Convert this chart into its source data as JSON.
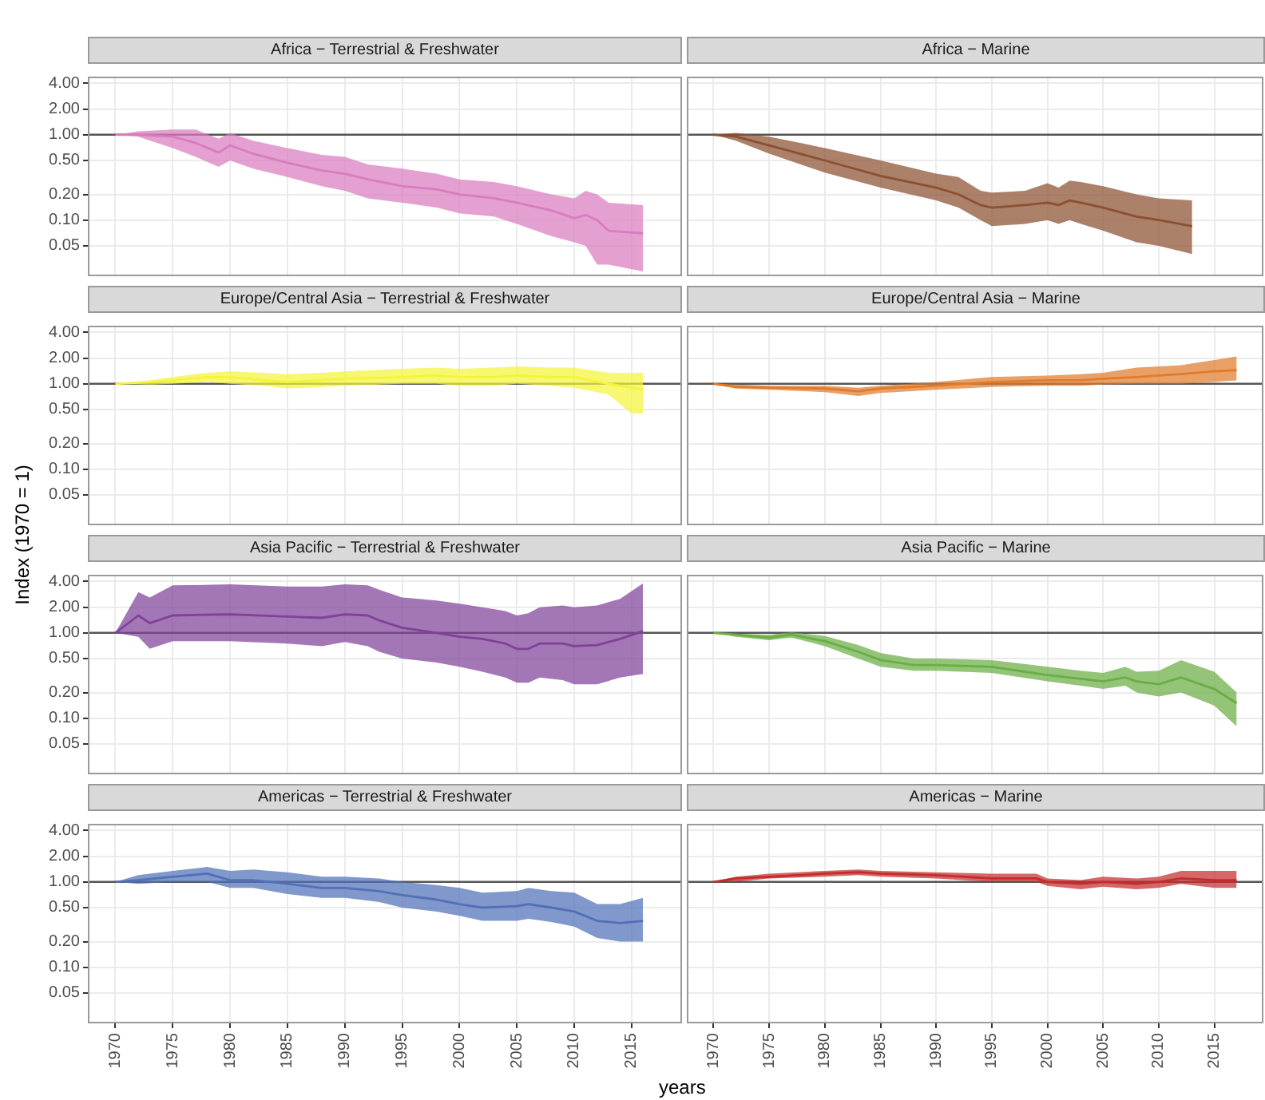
{
  "chart_data": [
    {
      "type": "line",
      "title": "Africa − Terrestrial & Freshwater",
      "log": true,
      "grid": true,
      "tick_labels": "y",
      "xlim": [
        1967.6,
        2019.4
      ],
      "xticks": [
        1970,
        1975,
        1980,
        1985,
        1990,
        1995,
        2000,
        2005,
        2010,
        2015
      ],
      "ylim": [
        0.022,
        4.8
      ],
      "yticks": [
        {
          "value": 0.05,
          "label": "0.05"
        },
        {
          "value": 0.1,
          "label": "0.10"
        },
        {
          "value": 0.2,
          "label": "0.20"
        },
        {
          "value": 0.5,
          "label": "0.50"
        },
        {
          "value": 1,
          "label": "1.00"
        },
        {
          "value": 2,
          "label": "2.00"
        },
        {
          "value": 4,
          "label": "4.00"
        }
      ],
      "ref_lines": [
        {
          "axis": "y",
          "value": 1
        }
      ],
      "x": [
        1970,
        1972,
        1975,
        1977,
        1979,
        1980,
        1982,
        1985,
        1988,
        1990,
        1992,
        1995,
        1998,
        2000,
        2003,
        2005,
        2008,
        2010,
        2011,
        2012,
        2013,
        2016
      ],
      "series": [
        {
          "color": "#d97cbe",
          "values": [
            1,
            1,
            0.95,
            0.8,
            0.62,
            0.75,
            0.6,
            0.47,
            0.38,
            0.35,
            0.3,
            0.25,
            0.23,
            0.2,
            0.18,
            0.16,
            0.13,
            0.105,
            0.115,
            0.1,
            0.075,
            0.07
          ],
          "upper": [
            1,
            1.1,
            1.15,
            1.15,
            0.9,
            1.05,
            0.85,
            0.7,
            0.58,
            0.55,
            0.45,
            0.4,
            0.35,
            0.3,
            0.28,
            0.25,
            0.2,
            0.18,
            0.22,
            0.2,
            0.16,
            0.15
          ],
          "lower": [
            1,
            0.95,
            0.7,
            0.55,
            0.42,
            0.5,
            0.4,
            0.32,
            0.25,
            0.22,
            0.18,
            0.16,
            0.14,
            0.12,
            0.11,
            0.09,
            0.065,
            0.055,
            0.05,
            0.03,
            0.03,
            0.025
          ]
        }
      ]
    },
    {
      "type": "line",
      "title": "Africa − Marine",
      "log": true,
      "grid": true,
      "tick_labels": false,
      "xlim": [
        1967.6,
        2019.4
      ],
      "xticks": [
        1970,
        1975,
        1980,
        1985,
        1990,
        1995,
        2000,
        2005,
        2010,
        2015
      ],
      "ylim": [
        0.022,
        4.8
      ],
      "yticks": [
        0.05,
        0.1,
        0.2,
        0.5,
        1,
        2,
        4
      ],
      "ref_lines": [
        {
          "axis": "y",
          "value": 1
        }
      ],
      "x": [
        1970,
        1972,
        1975,
        1980,
        1985,
        1990,
        1992,
        1994,
        1995,
        1998,
        2000,
        2001,
        2002,
        2003,
        2005,
        2008,
        2010,
        2013
      ],
      "series": [
        {
          "color": "#8b5031",
          "values": [
            1,
            0.95,
            0.75,
            0.5,
            0.33,
            0.24,
            0.2,
            0.15,
            0.14,
            0.15,
            0.16,
            0.15,
            0.17,
            0.16,
            0.14,
            0.11,
            0.1,
            0.085
          ],
          "upper": [
            1,
            1.05,
            0.95,
            0.7,
            0.5,
            0.35,
            0.32,
            0.22,
            0.21,
            0.22,
            0.27,
            0.24,
            0.29,
            0.28,
            0.25,
            0.2,
            0.18,
            0.17
          ],
          "lower": [
            1,
            0.85,
            0.6,
            0.36,
            0.24,
            0.17,
            0.14,
            0.1,
            0.085,
            0.09,
            0.1,
            0.09,
            0.1,
            0.09,
            0.075,
            0.055,
            0.05,
            0.04
          ]
        }
      ]
    },
    {
      "type": "line",
      "title": "Europe/Central Asia − Terrestrial & Freshwater",
      "ylabel": "Index (1970 = 1)",
      "log": true,
      "grid": true,
      "tick_labels": "y",
      "xlim": [
        1967.6,
        2019.4
      ],
      "xticks": [
        1970,
        1975,
        1980,
        1985,
        1990,
        1995,
        2000,
        2005,
        2010,
        2015
      ],
      "ylim": [
        0.022,
        4.8
      ],
      "yticks": [
        {
          "value": 0.05,
          "label": "0.05"
        },
        {
          "value": 0.1,
          "label": "0.10"
        },
        {
          "value": 0.2,
          "label": "0.20"
        },
        {
          "value": 0.5,
          "label": "0.50"
        },
        {
          "value": 1,
          "label": "1.00"
        },
        {
          "value": 2,
          "label": "2.00"
        },
        {
          "value": 4,
          "label": "4.00"
        }
      ],
      "ref_lines": [
        {
          "axis": "y",
          "value": 1
        }
      ],
      "x": [
        1970,
        1973,
        1975,
        1978,
        1980,
        1983,
        1985,
        1988,
        1990,
        1995,
        1998,
        2000,
        2003,
        2005,
        2008,
        2010,
        2013,
        2015,
        2016
      ],
      "series": [
        {
          "color": "#f4f43a",
          "values": [
            1,
            1.05,
            1.1,
            1.2,
            1.2,
            1.1,
            1.05,
            1.1,
            1.15,
            1.2,
            1.25,
            1.2,
            1.2,
            1.25,
            1.2,
            1.2,
            1,
            0.9,
            0.85
          ],
          "upper": [
            1,
            1.1,
            1.2,
            1.35,
            1.4,
            1.35,
            1.3,
            1.35,
            1.4,
            1.5,
            1.55,
            1.5,
            1.55,
            1.6,
            1.55,
            1.55,
            1.35,
            1.35,
            1.35
          ],
          "lower": [
            1,
            0.98,
            1,
            1.05,
            1,
            0.95,
            0.88,
            0.92,
            0.95,
            1,
            1,
            0.95,
            0.95,
            1,
            0.95,
            0.9,
            0.75,
            0.45,
            0.45
          ]
        }
      ]
    },
    {
      "type": "line",
      "title": "Europe/Central Asia − Marine",
      "log": true,
      "grid": true,
      "tick_labels": false,
      "xlim": [
        1967.6,
        2019.4
      ],
      "xticks": [
        1970,
        1975,
        1980,
        1985,
        1990,
        1995,
        2000,
        2005,
        2010,
        2015
      ],
      "ylim": [
        0.022,
        4.8
      ],
      "yticks": [
        0.05,
        0.1,
        0.2,
        0.5,
        1,
        2,
        4
      ],
      "ref_lines": [
        {
          "axis": "y",
          "value": 1
        }
      ],
      "x": [
        1970,
        1972,
        1975,
        1980,
        1983,
        1985,
        1990,
        1995,
        2000,
        2003,
        2005,
        2008,
        2010,
        2012,
        2015,
        2017
      ],
      "series": [
        {
          "color": "#e07b2c",
          "values": [
            1,
            0.92,
            0.9,
            0.88,
            0.82,
            0.88,
            0.95,
            1.05,
            1.1,
            1.1,
            1.15,
            1.2,
            1.25,
            1.3,
            1.4,
            1.45
          ],
          "upper": [
            1,
            0.98,
            0.95,
            0.95,
            0.9,
            0.95,
            1.05,
            1.2,
            1.25,
            1.3,
            1.35,
            1.55,
            1.6,
            1.65,
            1.9,
            2.1
          ],
          "lower": [
            1,
            0.88,
            0.85,
            0.8,
            0.72,
            0.78,
            0.85,
            0.92,
            0.95,
            0.95,
            0.98,
            1,
            1,
            1,
            1.05,
            1.1
          ]
        }
      ]
    },
    {
      "type": "line",
      "title": "Asia Pacific − Terrestrial & Freshwater",
      "log": true,
      "grid": true,
      "tick_labels": "y",
      "xlim": [
        1967.6,
        2019.4
      ],
      "xticks": [
        1970,
        1975,
        1980,
        1985,
        1990,
        1995,
        2000,
        2005,
        2010,
        2015
      ],
      "ylim": [
        0.022,
        4.8
      ],
      "yticks": [
        {
          "value": 0.05,
          "label": "0.05"
        },
        {
          "value": 0.1,
          "label": "0.10"
        },
        {
          "value": 0.2,
          "label": "0.20"
        },
        {
          "value": 0.5,
          "label": "0.50"
        },
        {
          "value": 1,
          "label": "1.00"
        },
        {
          "value": 2,
          "label": "2.00"
        },
        {
          "value": 4,
          "label": "4.00"
        }
      ],
      "ref_lines": [
        {
          "axis": "y",
          "value": 1
        }
      ],
      "x": [
        1970,
        1972,
        1973,
        1975,
        1980,
        1985,
        1988,
        1990,
        1992,
        1993,
        1995,
        1998,
        2000,
        2002,
        2004,
        2005,
        2006,
        2007,
        2009,
        2010,
        2012,
        2014,
        2016
      ],
      "series": [
        {
          "color": "#7f4298",
          "values": [
            1,
            1.6,
            1.3,
            1.6,
            1.65,
            1.55,
            1.5,
            1.65,
            1.6,
            1.4,
            1.15,
            1,
            0.9,
            0.85,
            0.75,
            0.65,
            0.65,
            0.75,
            0.75,
            0.7,
            0.72,
            0.85,
            1.05
          ],
          "upper": [
            1,
            3,
            2.6,
            3.6,
            3.7,
            3.5,
            3.5,
            3.7,
            3.6,
            3.2,
            2.6,
            2.4,
            2.2,
            2,
            1.8,
            1.6,
            1.7,
            2,
            2.1,
            2,
            2.1,
            2.5,
            3.8
          ],
          "lower": [
            1,
            0.9,
            0.65,
            0.8,
            0.8,
            0.75,
            0.7,
            0.78,
            0.7,
            0.6,
            0.5,
            0.45,
            0.4,
            0.35,
            0.3,
            0.26,
            0.26,
            0.3,
            0.28,
            0.25,
            0.25,
            0.3,
            0.33
          ]
        }
      ]
    },
    {
      "type": "line",
      "title": "Asia Pacific − Marine",
      "log": true,
      "grid": true,
      "tick_labels": false,
      "xlim": [
        1967.6,
        2019.4
      ],
      "xticks": [
        1970,
        1975,
        1980,
        1985,
        1990,
        1995,
        2000,
        2005,
        2010,
        2015
      ],
      "ylim": [
        0.022,
        4.8
      ],
      "yticks": [
        0.05,
        0.1,
        0.2,
        0.5,
        1,
        2,
        4
      ],
      "ref_lines": [
        {
          "axis": "y",
          "value": 1
        }
      ],
      "x": [
        1970,
        1972,
        1975,
        1977,
        1980,
        1983,
        1985,
        1988,
        1990,
        1995,
        2000,
        2003,
        2005,
        2007,
        2008,
        2010,
        2012,
        2015,
        2017
      ],
      "series": [
        {
          "color": "#6aad44",
          "values": [
            1,
            0.95,
            0.88,
            0.95,
            0.8,
            0.6,
            0.48,
            0.42,
            0.42,
            0.4,
            0.32,
            0.29,
            0.27,
            0.3,
            0.27,
            0.25,
            0.3,
            0.22,
            0.15
          ],
          "upper": [
            1,
            0.98,
            0.95,
            1.02,
            0.92,
            0.72,
            0.58,
            0.5,
            0.5,
            0.48,
            0.4,
            0.36,
            0.34,
            0.4,
            0.35,
            0.36,
            0.48,
            0.35,
            0.2
          ],
          "lower": [
            1,
            0.9,
            0.82,
            0.88,
            0.7,
            0.5,
            0.4,
            0.36,
            0.36,
            0.34,
            0.27,
            0.24,
            0.22,
            0.24,
            0.2,
            0.18,
            0.2,
            0.14,
            0.08
          ]
        }
      ]
    },
    {
      "type": "line",
      "title": "Americas − Terrestrial & Freshwater",
      "xlabel": "years",
      "log": true,
      "grid": true,
      "xlim": [
        1967.6,
        2019.4
      ],
      "xticks": [
        1970,
        1975,
        1980,
        1985,
        1990,
        1995,
        2000,
        2005,
        2010,
        2015
      ],
      "ylim": [
        0.022,
        4.8
      ],
      "yticks": [
        {
          "value": 0.05,
          "label": "0.05"
        },
        {
          "value": 0.1,
          "label": "0.10"
        },
        {
          "value": 0.2,
          "label": "0.20"
        },
        {
          "value": 0.5,
          "label": "0.50"
        },
        {
          "value": 1,
          "label": "1.00"
        },
        {
          "value": 2,
          "label": "2.00"
        },
        {
          "value": 4,
          "label": "4.00"
        }
      ],
      "ref_lines": [
        {
          "axis": "y",
          "value": 1
        }
      ],
      "x": [
        1970,
        1972,
        1975,
        1978,
        1980,
        1982,
        1985,
        1988,
        1990,
        1993,
        1995,
        1998,
        2000,
        2002,
        2005,
        2006,
        2008,
        2010,
        2012,
        2014,
        2016
      ],
      "series": [
        {
          "color": "#5070b8",
          "values": [
            1,
            1.05,
            1.15,
            1.25,
            1.05,
            1.05,
            0.95,
            0.85,
            0.85,
            0.78,
            0.7,
            0.62,
            0.55,
            0.5,
            0.52,
            0.55,
            0.5,
            0.45,
            0.35,
            0.33,
            0.35
          ],
          "upper": [
            1,
            1.2,
            1.35,
            1.5,
            1.35,
            1.4,
            1.3,
            1.15,
            1.15,
            1.1,
            1,
            0.92,
            0.85,
            0.75,
            0.78,
            0.85,
            0.78,
            0.75,
            0.55,
            0.55,
            0.65
          ],
          "lower": [
            1,
            0.95,
            1,
            1,
            0.85,
            0.85,
            0.72,
            0.65,
            0.65,
            0.58,
            0.5,
            0.45,
            0.4,
            0.35,
            0.35,
            0.37,
            0.34,
            0.3,
            0.22,
            0.2,
            0.2
          ]
        }
      ]
    },
    {
      "type": "line",
      "title": "Americas − Marine",
      "log": true,
      "grid": true,
      "tick_labels": "x",
      "xlim": [
        1967.6,
        2019.4
      ],
      "xticks": [
        1970,
        1975,
        1980,
        1985,
        1990,
        1995,
        2000,
        2005,
        2010,
        2015
      ],
      "ylim": [
        0.022,
        4.8
      ],
      "yticks": [
        0.05,
        0.1,
        0.2,
        0.5,
        1,
        2,
        4
      ],
      "ref_lines": [
        {
          "axis": "y",
          "value": 1
        }
      ],
      "x": [
        1970,
        1972,
        1975,
        1980,
        1983,
        1985,
        1990,
        1995,
        1999,
        2000,
        2003,
        2005,
        2008,
        2010,
        2012,
        2015,
        2017
      ],
      "series": [
        {
          "color": "#c42c2c",
          "values": [
            1,
            1.1,
            1.15,
            1.25,
            1.3,
            1.25,
            1.2,
            1.1,
            1.1,
            1,
            0.95,
            1,
            0.95,
            1,
            1.1,
            1.05,
            1.05
          ],
          "upper": [
            1,
            1.15,
            1.25,
            1.35,
            1.4,
            1.35,
            1.3,
            1.25,
            1.25,
            1.1,
            1.05,
            1.15,
            1.1,
            1.15,
            1.35,
            1.35,
            1.35
          ],
          "lower": [
            1,
            1,
            1.1,
            1.15,
            1.2,
            1.15,
            1.1,
            1,
            1,
            0.9,
            0.82,
            0.88,
            0.82,
            0.85,
            0.95,
            0.85,
            0.85
          ]
        }
      ]
    }
  ]
}
